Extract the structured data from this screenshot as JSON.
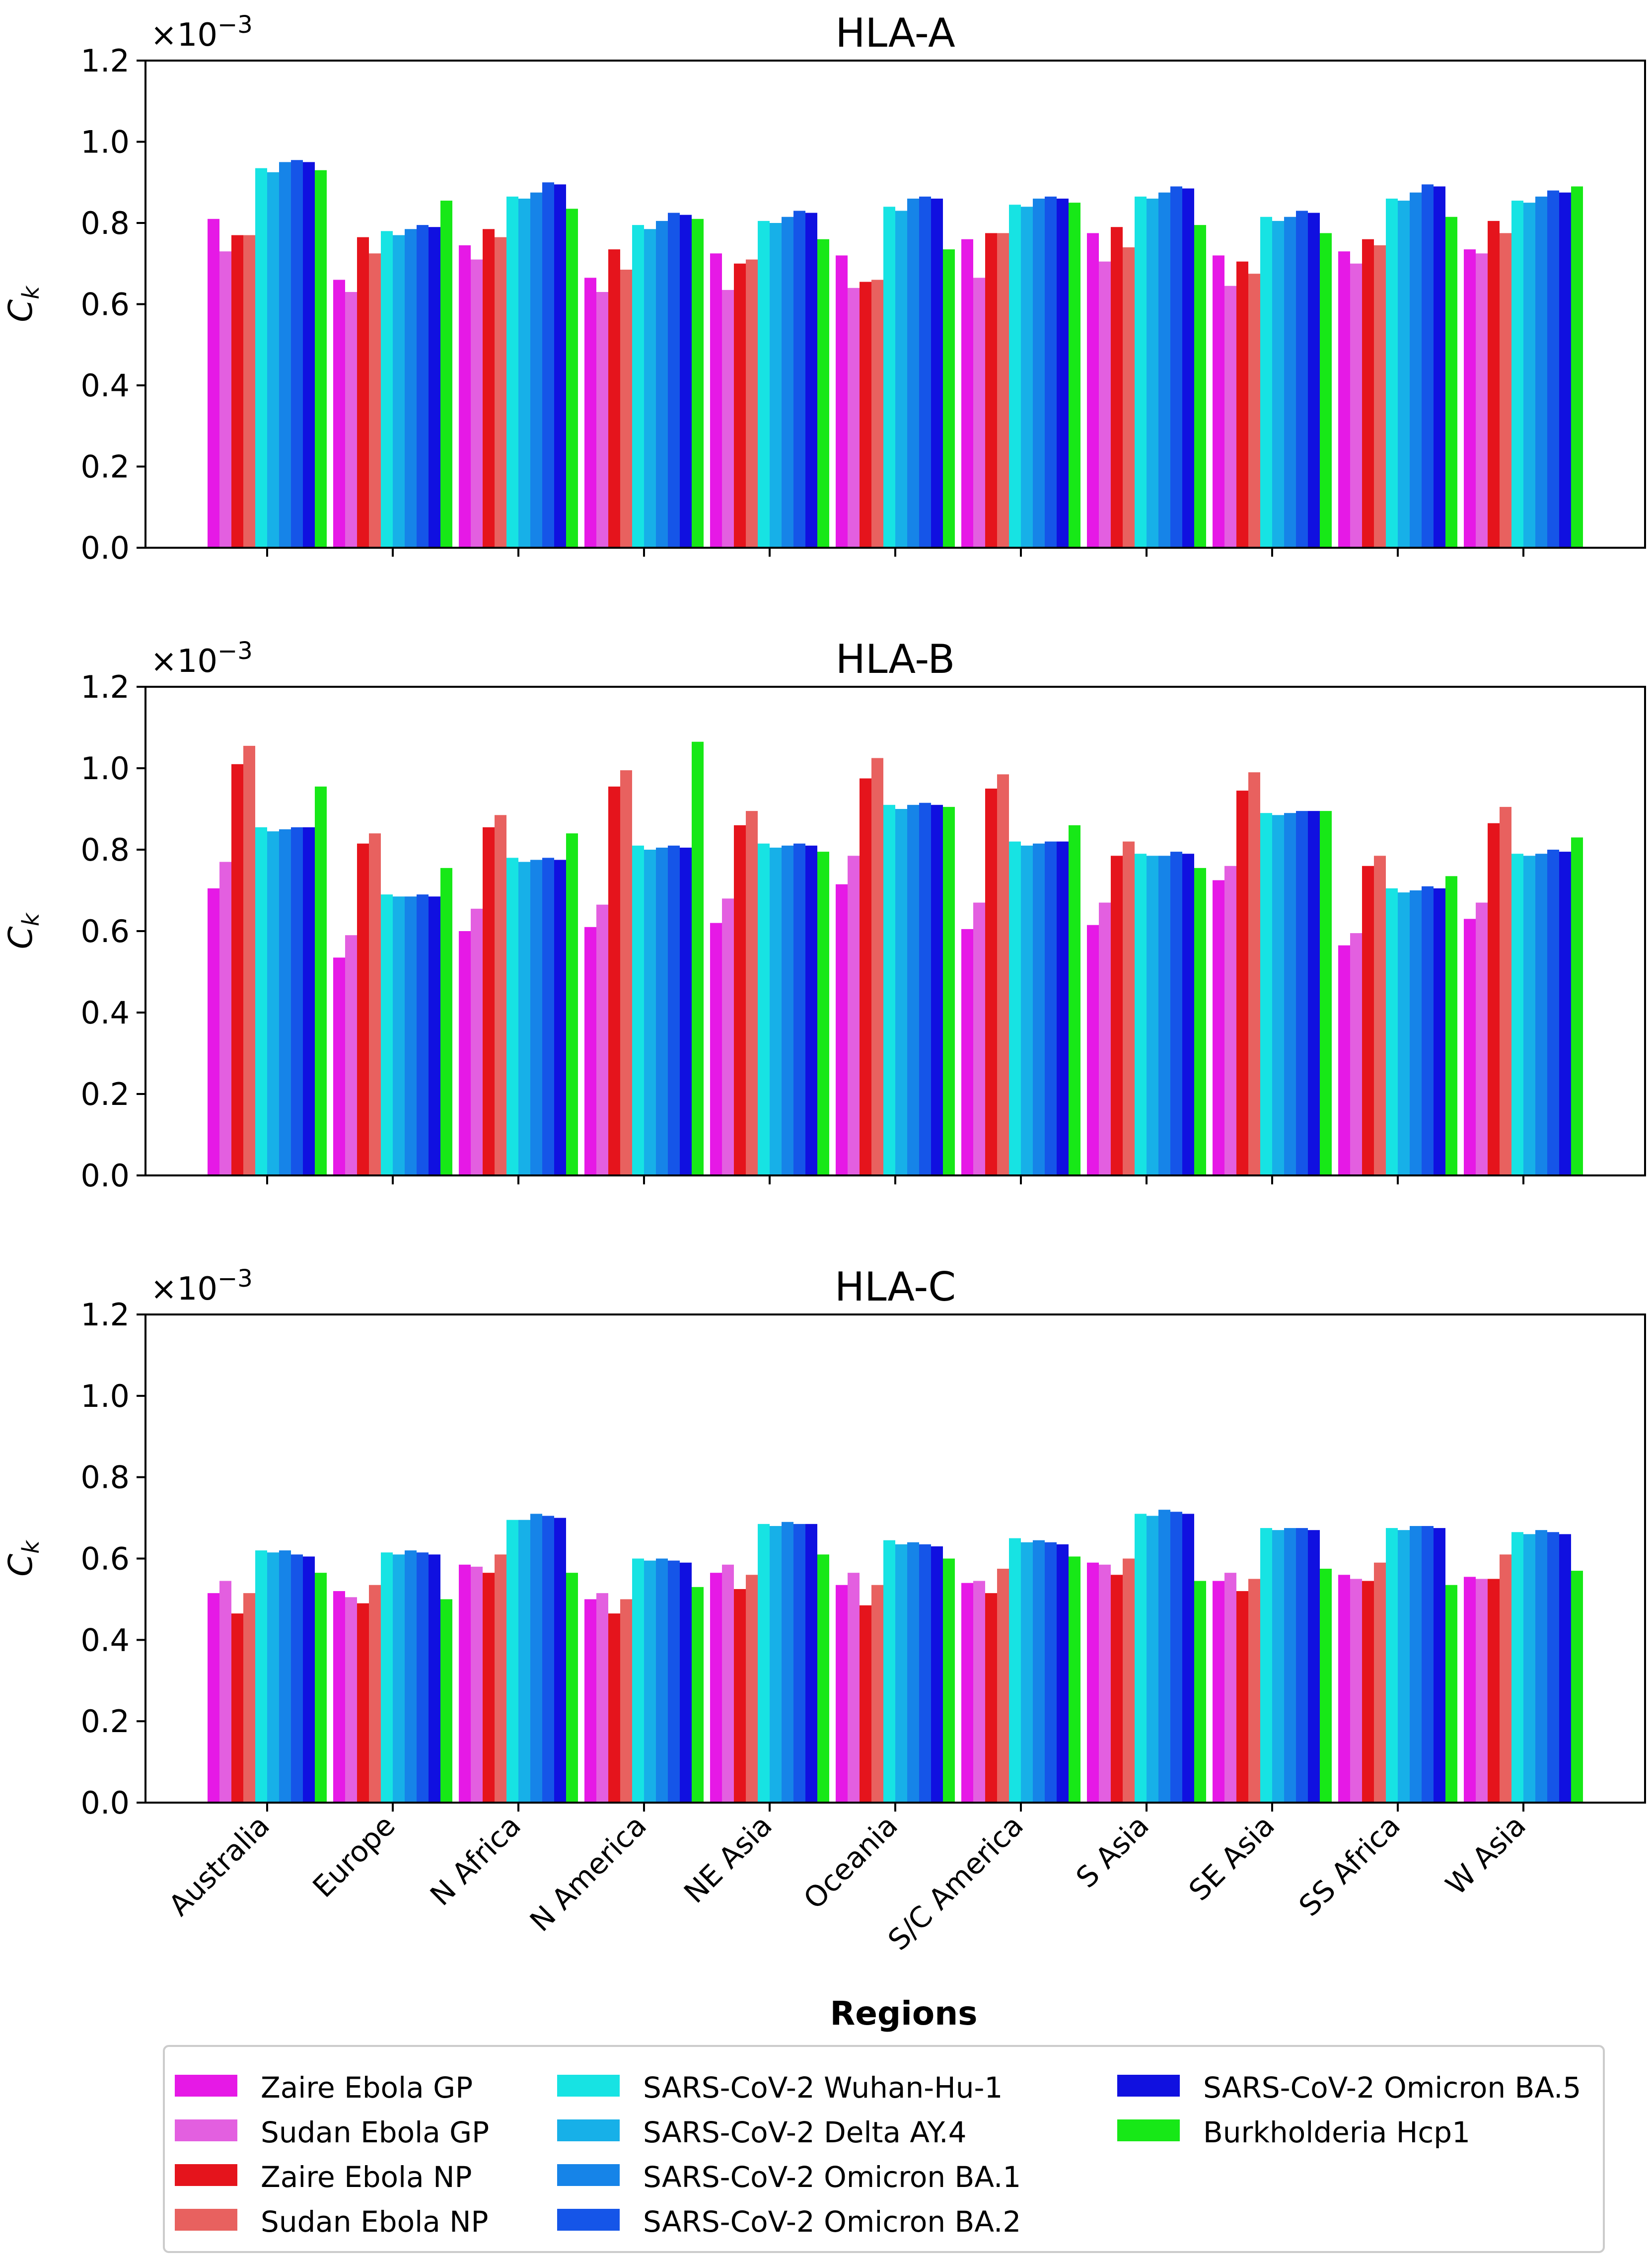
{
  "figure": {
    "xlabel": "Regions",
    "ylabel": "C",
    "ylabel_sub": "k",
    "scale_base": "×10",
    "scale_exp": "−3"
  },
  "chart_data": [
    {
      "type": "bar",
      "title": "HLA-A",
      "ylim": [
        0,
        1.2
      ],
      "yticks": [
        "0.0",
        "0.2",
        "0.4",
        "0.6",
        "0.8",
        "1.0",
        "1.2"
      ],
      "categories": [
        "Australia",
        "Europe",
        "N Africa",
        "N America",
        "NE Asia",
        "Oceania",
        "S/C America",
        "S Asia",
        "SE Asia",
        "SS Africa",
        "W Asia"
      ],
      "series": [
        {
          "name": "Zaire Ebola GP",
          "values": [
            0.81,
            0.66,
            0.745,
            0.665,
            0.725,
            0.72,
            0.76,
            0.775,
            0.72,
            0.73,
            0.735
          ]
        },
        {
          "name": "Sudan Ebola GP",
          "values": [
            0.73,
            0.63,
            0.71,
            0.63,
            0.635,
            0.64,
            0.665,
            0.705,
            0.645,
            0.7,
            0.725
          ]
        },
        {
          "name": "Zaire Ebola NP",
          "values": [
            0.77,
            0.765,
            0.785,
            0.735,
            0.7,
            0.655,
            0.775,
            0.79,
            0.705,
            0.76,
            0.805
          ]
        },
        {
          "name": "Sudan Ebola NP",
          "values": [
            0.77,
            0.725,
            0.765,
            0.685,
            0.71,
            0.66,
            0.775,
            0.74,
            0.675,
            0.745,
            0.775
          ]
        },
        {
          "name": "SARS-CoV-2 Wuhan-Hu-1",
          "values": [
            0.935,
            0.78,
            0.865,
            0.795,
            0.805,
            0.84,
            0.845,
            0.865,
            0.815,
            0.86,
            0.855
          ]
        },
        {
          "name": "SARS-CoV-2 Delta AY.4",
          "values": [
            0.925,
            0.77,
            0.86,
            0.785,
            0.8,
            0.83,
            0.84,
            0.86,
            0.805,
            0.855,
            0.85
          ]
        },
        {
          "name": "SARS-CoV-2 Omicron BA.1",
          "values": [
            0.95,
            0.785,
            0.875,
            0.805,
            0.815,
            0.86,
            0.86,
            0.875,
            0.815,
            0.875,
            0.865
          ]
        },
        {
          "name": "SARS-CoV-2 Omicron BA.2",
          "values": [
            0.955,
            0.795,
            0.9,
            0.825,
            0.83,
            0.865,
            0.865,
            0.89,
            0.83,
            0.895,
            0.88
          ]
        },
        {
          "name": "SARS-CoV-2 Omicron BA.5",
          "values": [
            0.95,
            0.79,
            0.895,
            0.82,
            0.825,
            0.86,
            0.86,
            0.885,
            0.825,
            0.89,
            0.875
          ]
        },
        {
          "name": "Burkholderia Hcp1",
          "values": [
            0.93,
            0.855,
            0.835,
            0.81,
            0.76,
            0.735,
            0.85,
            0.795,
            0.775,
            0.815,
            0.89
          ]
        }
      ]
    },
    {
      "type": "bar",
      "title": "HLA-B",
      "ylim": [
        0,
        1.2
      ],
      "yticks": [
        "0.0",
        "0.2",
        "0.4",
        "0.6",
        "0.8",
        "1.0",
        "1.2"
      ],
      "categories": [
        "Australia",
        "Europe",
        "N Africa",
        "N America",
        "NE Asia",
        "Oceania",
        "S/C America",
        "S Asia",
        "SE Asia",
        "SS Africa",
        "W Asia"
      ],
      "series": [
        {
          "name": "Zaire Ebola GP",
          "values": [
            0.705,
            0.535,
            0.6,
            0.61,
            0.62,
            0.715,
            0.605,
            0.615,
            0.725,
            0.565,
            0.63
          ]
        },
        {
          "name": "Sudan Ebola GP",
          "values": [
            0.77,
            0.59,
            0.655,
            0.665,
            0.68,
            0.785,
            0.67,
            0.67,
            0.76,
            0.595,
            0.67
          ]
        },
        {
          "name": "Zaire Ebola NP",
          "values": [
            1.01,
            0.815,
            0.855,
            0.955,
            0.86,
            0.975,
            0.95,
            0.785,
            0.945,
            0.76,
            0.865
          ]
        },
        {
          "name": "Sudan Ebola NP",
          "values": [
            1.055,
            0.84,
            0.885,
            0.995,
            0.895,
            1.025,
            0.985,
            0.82,
            0.99,
            0.785,
            0.905
          ]
        },
        {
          "name": "SARS-CoV-2 Wuhan-Hu-1",
          "values": [
            0.855,
            0.69,
            0.78,
            0.81,
            0.815,
            0.91,
            0.82,
            0.79,
            0.89,
            0.705,
            0.79
          ]
        },
        {
          "name": "SARS-CoV-2 Delta AY.4",
          "values": [
            0.845,
            0.685,
            0.77,
            0.8,
            0.805,
            0.9,
            0.81,
            0.785,
            0.885,
            0.695,
            0.785
          ]
        },
        {
          "name": "SARS-CoV-2 Omicron BA.1",
          "values": [
            0.85,
            0.685,
            0.775,
            0.805,
            0.81,
            0.91,
            0.815,
            0.785,
            0.89,
            0.7,
            0.79
          ]
        },
        {
          "name": "SARS-CoV-2 Omicron BA.2",
          "values": [
            0.855,
            0.69,
            0.78,
            0.81,
            0.815,
            0.915,
            0.82,
            0.795,
            0.895,
            0.71,
            0.8
          ]
        },
        {
          "name": "SARS-CoV-2 Omicron BA.5",
          "values": [
            0.855,
            0.685,
            0.775,
            0.805,
            0.81,
            0.91,
            0.82,
            0.79,
            0.895,
            0.705,
            0.795
          ]
        },
        {
          "name": "Burkholderia Hcp1",
          "values": [
            0.955,
            0.755,
            0.84,
            1.065,
            0.795,
            0.905,
            0.86,
            0.755,
            0.895,
            0.735,
            0.83
          ]
        }
      ]
    },
    {
      "type": "bar",
      "title": "HLA-C",
      "ylim": [
        0,
        1.2
      ],
      "yticks": [
        "0.0",
        "0.2",
        "0.4",
        "0.6",
        "0.8",
        "1.0",
        "1.2"
      ],
      "categories": [
        "Australia",
        "Europe",
        "N Africa",
        "N America",
        "NE Asia",
        "Oceania",
        "S/C America",
        "S Asia",
        "SE Asia",
        "SS Africa",
        "W Asia"
      ],
      "series": [
        {
          "name": "Zaire Ebola GP",
          "values": [
            0.515,
            0.52,
            0.585,
            0.5,
            0.565,
            0.535,
            0.54,
            0.59,
            0.545,
            0.56,
            0.555
          ]
        },
        {
          "name": "Sudan Ebola GP",
          "values": [
            0.545,
            0.505,
            0.58,
            0.515,
            0.585,
            0.565,
            0.545,
            0.585,
            0.565,
            0.55,
            0.55
          ]
        },
        {
          "name": "Zaire Ebola NP",
          "values": [
            0.465,
            0.49,
            0.565,
            0.465,
            0.525,
            0.485,
            0.515,
            0.56,
            0.52,
            0.545,
            0.55
          ]
        },
        {
          "name": "Sudan Ebola NP",
          "values": [
            0.515,
            0.535,
            0.61,
            0.5,
            0.56,
            0.535,
            0.575,
            0.6,
            0.55,
            0.59,
            0.61
          ]
        },
        {
          "name": "SARS-CoV-2 Wuhan-Hu-1",
          "values": [
            0.62,
            0.615,
            0.695,
            0.6,
            0.685,
            0.645,
            0.65,
            0.71,
            0.675,
            0.675,
            0.665
          ]
        },
        {
          "name": "SARS-CoV-2 Delta AY.4",
          "values": [
            0.615,
            0.61,
            0.695,
            0.595,
            0.68,
            0.635,
            0.64,
            0.705,
            0.67,
            0.67,
            0.66
          ]
        },
        {
          "name": "SARS-CoV-2 Omicron BA.1",
          "values": [
            0.62,
            0.62,
            0.71,
            0.6,
            0.69,
            0.64,
            0.645,
            0.72,
            0.675,
            0.68,
            0.67
          ]
        },
        {
          "name": "SARS-CoV-2 Omicron BA.2",
          "values": [
            0.61,
            0.615,
            0.705,
            0.595,
            0.685,
            0.635,
            0.64,
            0.715,
            0.675,
            0.68,
            0.665
          ]
        },
        {
          "name": "SARS-CoV-2 Omicron BA.5",
          "values": [
            0.605,
            0.61,
            0.7,
            0.59,
            0.685,
            0.63,
            0.635,
            0.71,
            0.67,
            0.675,
            0.66
          ]
        },
        {
          "name": "Burkholderia Hcp1",
          "values": [
            0.565,
            0.5,
            0.565,
            0.53,
            0.61,
            0.6,
            0.605,
            0.545,
            0.575,
            0.535,
            0.57
          ]
        }
      ]
    }
  ],
  "legend": {
    "placement": "bottom",
    "entries": [
      {
        "label": "Zaire Ebola GP",
        "color": "#e619e6"
      },
      {
        "label": "Sudan Ebola GP",
        "color": "#e35fe0"
      },
      {
        "label": "Zaire Ebola NP",
        "color": "#e5141c"
      },
      {
        "label": "Sudan Ebola NP",
        "color": "#e8615f"
      },
      {
        "label": "SARS-CoV-2 Wuhan-Hu-1",
        "color": "#17e3e3"
      },
      {
        "label": "SARS-CoV-2 Delta AY.4",
        "color": "#17b0e8"
      },
      {
        "label": "SARS-CoV-2 Omicron BA.1",
        "color": "#1684e8"
      },
      {
        "label": "SARS-CoV-2 Omicron BA.2",
        "color": "#1555e8"
      },
      {
        "label": "SARS-CoV-2 Omicron BA.5",
        "color": "#1010e0"
      },
      {
        "label": "Burkholderia Hcp1",
        "color": "#17e817"
      }
    ]
  }
}
